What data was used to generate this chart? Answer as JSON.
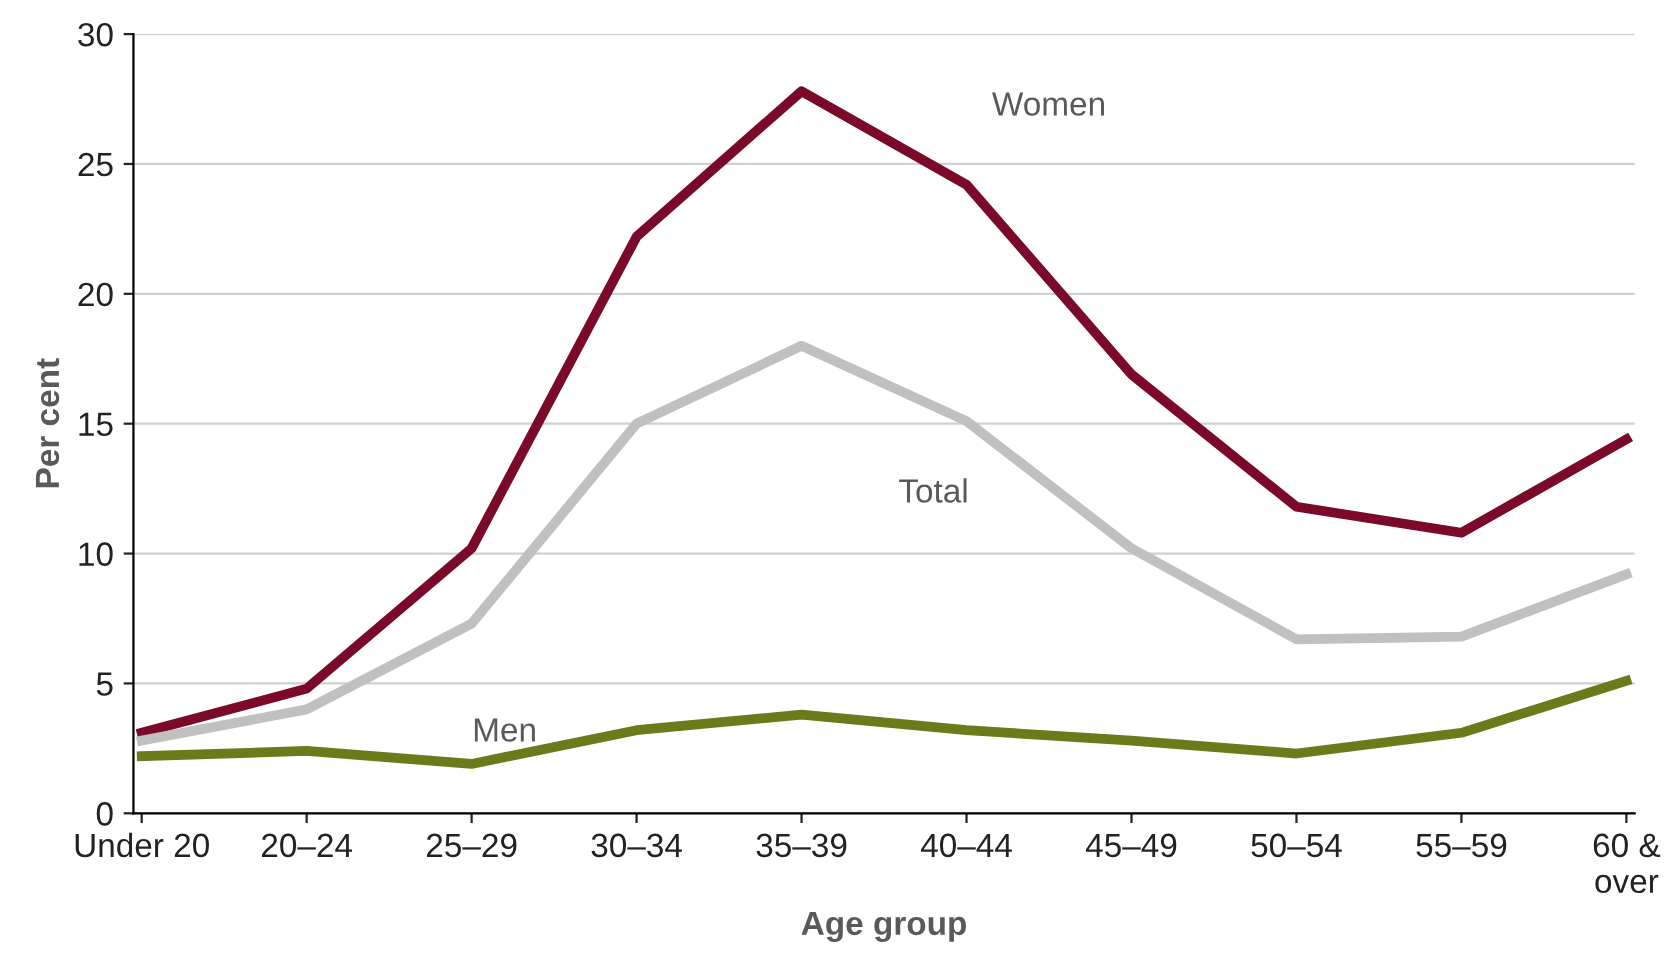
{
  "chart_data": {
    "type": "line",
    "xlabel": "Age group",
    "ylabel": "Per cent",
    "categories": [
      "Under 20",
      "20–24",
      "25–29",
      "30–34",
      "35–39",
      "40–44",
      "45–49",
      "50–54",
      "55–59",
      "60 &\nover"
    ],
    "series": [
      {
        "name": "Women",
        "color": "#7b0a2a",
        "values": [
          3.1,
          4.8,
          10.2,
          22.2,
          27.8,
          24.2,
          16.9,
          11.8,
          10.8,
          14.4
        ]
      },
      {
        "name": "Total",
        "color": "#c0c0c0",
        "values": [
          2.8,
          4.0,
          7.3,
          15.0,
          18.0,
          15.1,
          10.2,
          6.7,
          6.8,
          9.2
        ]
      },
      {
        "name": "Men",
        "color": "#6b7a1a",
        "values": [
          2.2,
          2.4,
          1.9,
          3.2,
          3.8,
          3.2,
          2.8,
          2.3,
          3.1,
          5.1
        ]
      }
    ],
    "ylim": [
      0,
      30
    ],
    "yticks": [
      0,
      5,
      10,
      15,
      20,
      25,
      30
    ],
    "grid": "y",
    "legend": false,
    "marker": "none",
    "line_style": "solid"
  }
}
